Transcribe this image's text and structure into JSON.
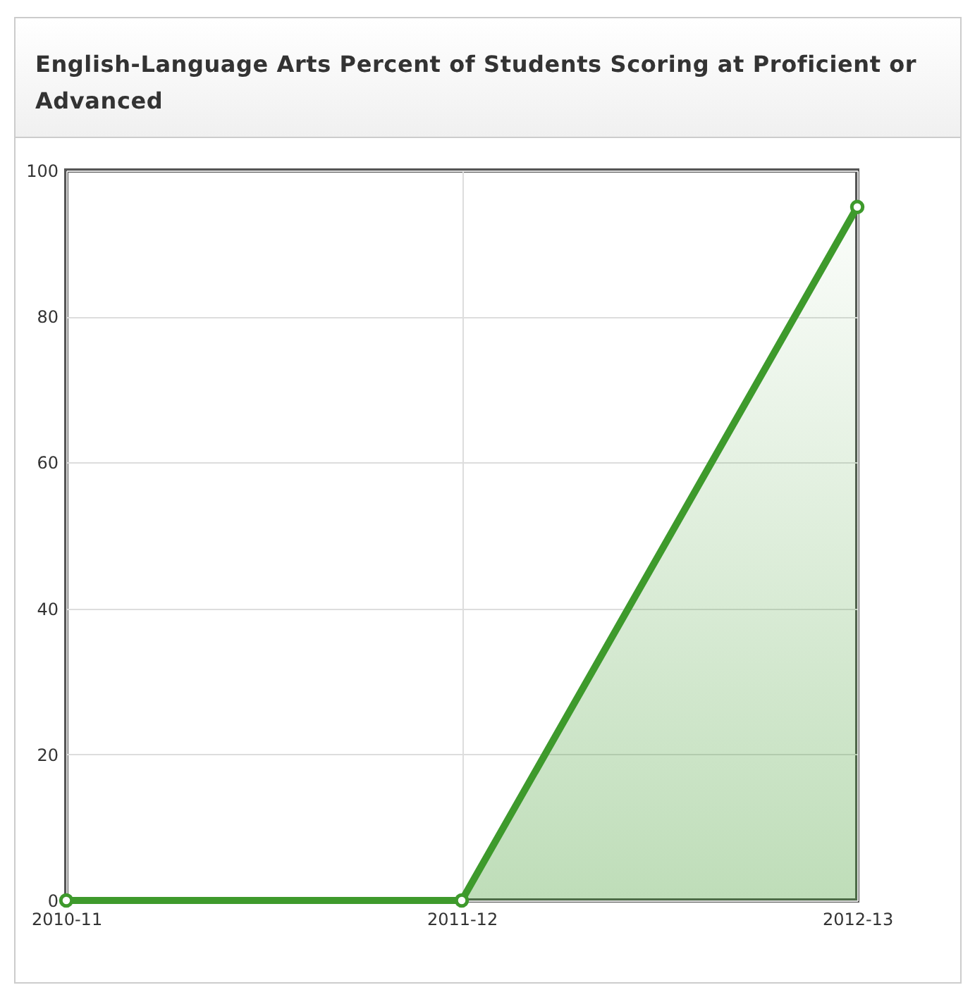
{
  "chart_data": {
    "type": "area",
    "title": "English-Language Arts Percent of Students Scoring at Proficient or Advanced",
    "categories": [
      "2010-11",
      "2011-12",
      "2012-13"
    ],
    "series": [
      {
        "color": "#3e9a2c",
        "values": [
          0,
          0,
          95
        ]
      }
    ],
    "ylim": [
      0,
      100
    ],
    "yticks": [
      0,
      20,
      40,
      60,
      80,
      100
    ],
    "grid": true,
    "marker": "circle"
  }
}
